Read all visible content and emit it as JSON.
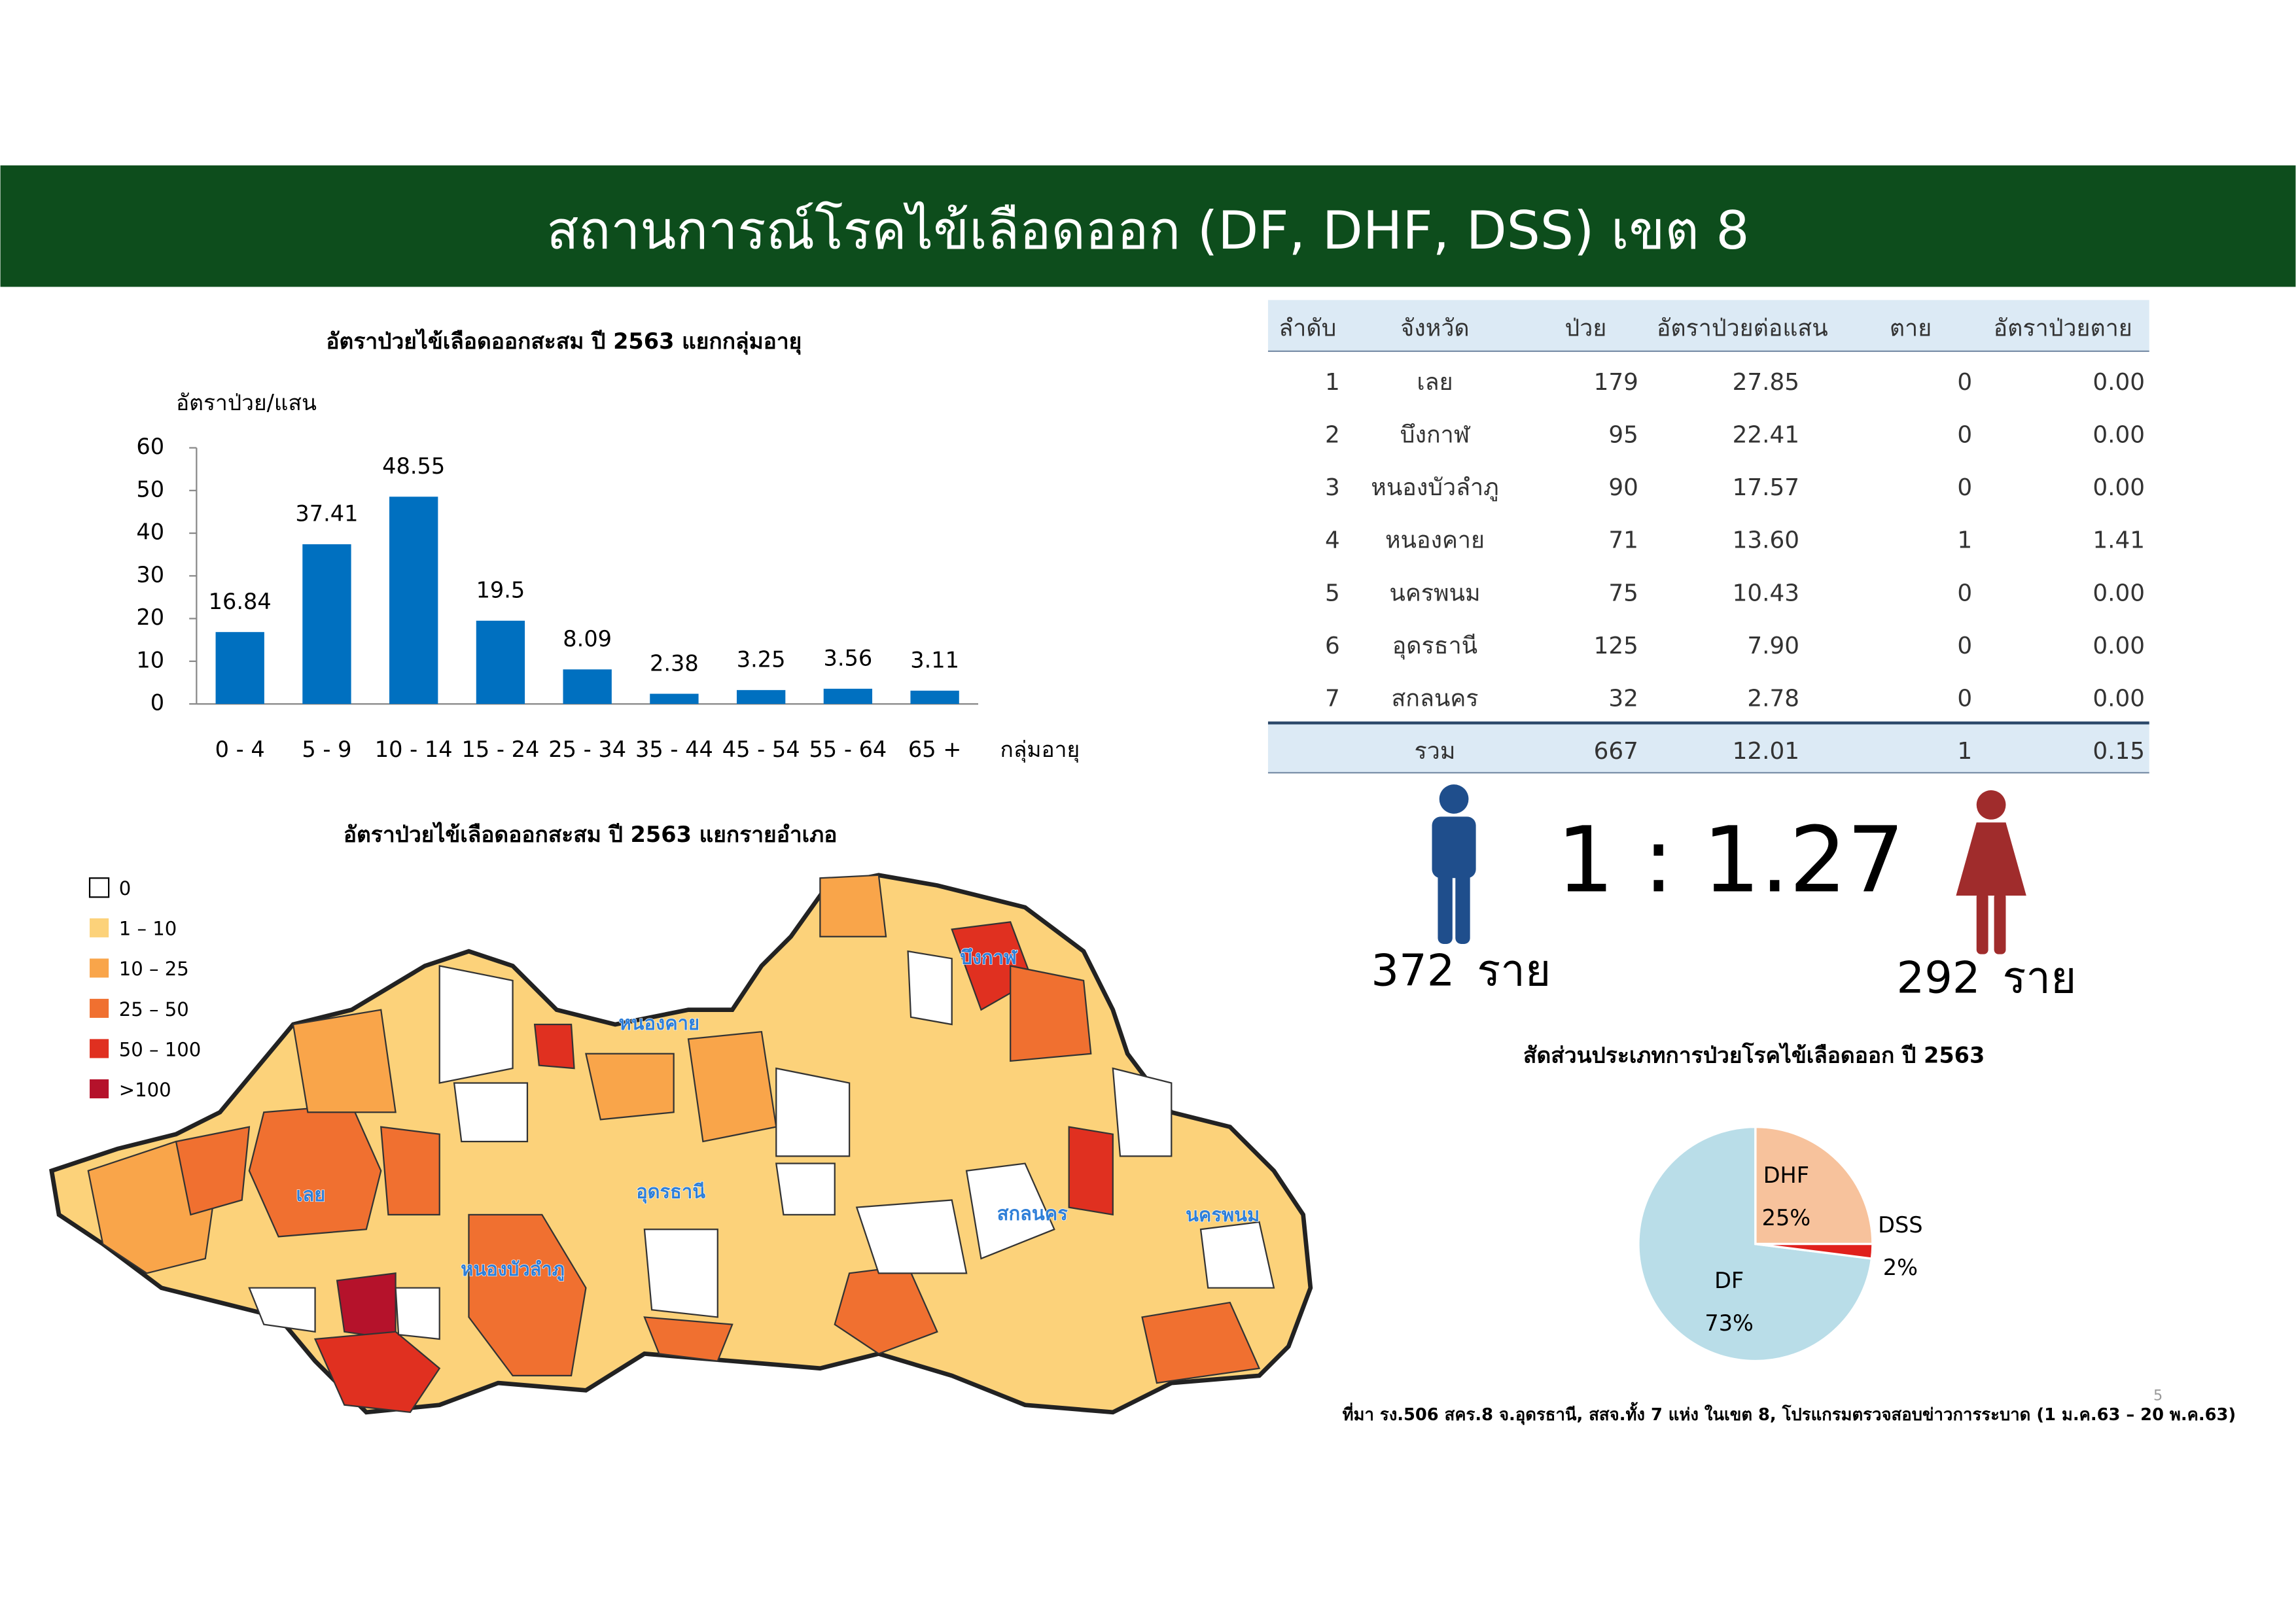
{
  "header": {
    "title": "สถานการณ์โรคไข้เลือดออก (DF, DHF, DSS) เขต 8"
  },
  "chart_data": [
    {
      "type": "bar",
      "title": "อัตราป่วยไข้เลือดออกสะสม ปี 2563 แยกกลุ่มอายุ",
      "y_label": "อัตราป่วย/แสน",
      "x_label": "กลุ่มอายุ",
      "categories": [
        "0 - 4",
        "5 - 9",
        "10 - 14",
        "15 - 24",
        "25 - 34",
        "35 - 44",
        "45 - 54",
        "55 - 64",
        "65 +"
      ],
      "values": [
        16.84,
        37.41,
        48.55,
        19.5,
        8.09,
        2.38,
        3.25,
        3.56,
        3.11
      ],
      "color": "#0070c0",
      "ylim": [
        0,
        60
      ],
      "yticks": [
        0,
        10,
        20,
        30,
        40,
        50,
        60
      ],
      "grid": false
    },
    {
      "type": "pie",
      "title": "สัดส่วนประเภทการป่วยโรคไข้เลือดออก ปี 2563",
      "categories": [
        "DF",
        "DHF",
        "DSS"
      ],
      "values": [
        73,
        25,
        2
      ],
      "value_labels": [
        "73%",
        "25%",
        "2%"
      ],
      "colors": [
        "#b9dde8",
        "#f7c29c",
        "#e0201c"
      ]
    }
  ],
  "table": {
    "header": [
      "ลำดับ",
      "จังหวัด",
      "ป่วย",
      "อัตราป่วยต่อแสน",
      "ตาย",
      "อัตราป่วยตาย"
    ],
    "rows": [
      [
        "1",
        "เลย",
        "179",
        "27.85",
        "0",
        "0.00"
      ],
      [
        "2",
        "บึงกาฬ",
        "95",
        "22.41",
        "0",
        "0.00"
      ],
      [
        "3",
        "หนองบัวลำภู",
        "90",
        "17.57",
        "0",
        "0.00"
      ],
      [
        "4",
        "หนองคาย",
        "71",
        "13.60",
        "1",
        "1.41"
      ],
      [
        "5",
        "นครพนม",
        "75",
        "10.43",
        "0",
        "0.00"
      ],
      [
        "6",
        "อุดรธานี",
        "125",
        "7.90",
        "0",
        "0.00"
      ],
      [
        "7",
        "สกลนคร",
        "32",
        "2.78",
        "0",
        "0.00"
      ]
    ],
    "total": [
      "รวม",
      "667",
      "12.01",
      "1",
      "0.15"
    ]
  },
  "ratio": {
    "male_count": "372",
    "unit": "ราย",
    "ratio": "1 : 1.27",
    "female_count": "292"
  },
  "map": {
    "title": "อัตราป่วยไข้เลือดออกสะสม ปี 2563 แยกรายอำเภอ",
    "legend": [
      {
        "label": "0",
        "color": "#ffffff"
      },
      {
        "label": "1 – 10",
        "color": "#fcd27a"
      },
      {
        "label": "10 – 25",
        "color": "#f9a54a"
      },
      {
        "label": "25 – 50",
        "color": "#f07030"
      },
      {
        "label": "50 – 100",
        "color": "#e03020"
      },
      {
        "label": ">100",
        "color": "#b5122b"
      }
    ],
    "province_labels": [
      "เลย",
      "หนองคาย",
      "บึงกาฬ",
      "อุดรธานี",
      "หนองบัวลำภู",
      "สกลนคร",
      "นครพนม"
    ]
  },
  "source": "ที่มา รง.506 สคร.8 จ.อุดรธานี, สสจ.ทั้ง 7 แห่ง ในเขต 8, โปรแกรมตรวจสอบข่าวการระบาด (1 ม.ค.63 – 20 พ.ค.63)",
  "page_number": "5"
}
